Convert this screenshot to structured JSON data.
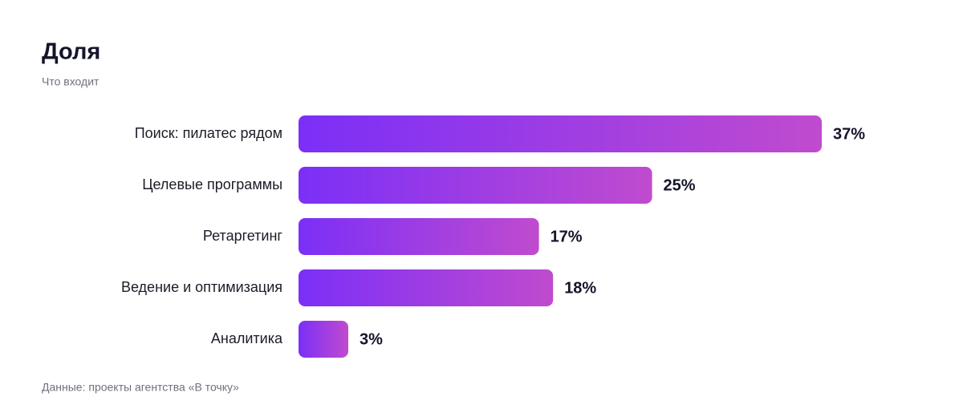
{
  "chart_data": {
    "type": "bar",
    "orientation": "horizontal",
    "title": "Доля",
    "subtitle": "Что входит",
    "source": "Данные: проекты агентства «В точку»",
    "categories": [
      "Поиск: пилатес рядом",
      "Целевые программы",
      "Ретаргетинг",
      "Ведение и оптимизация",
      "Аналитика"
    ],
    "values": [
      37,
      25,
      17,
      18,
      3
    ],
    "value_labels": [
      "37%",
      "25%",
      "17%",
      "18%",
      "3%"
    ],
    "gradient": [
      "#7b2ff7",
      "#c04bcf"
    ]
  }
}
